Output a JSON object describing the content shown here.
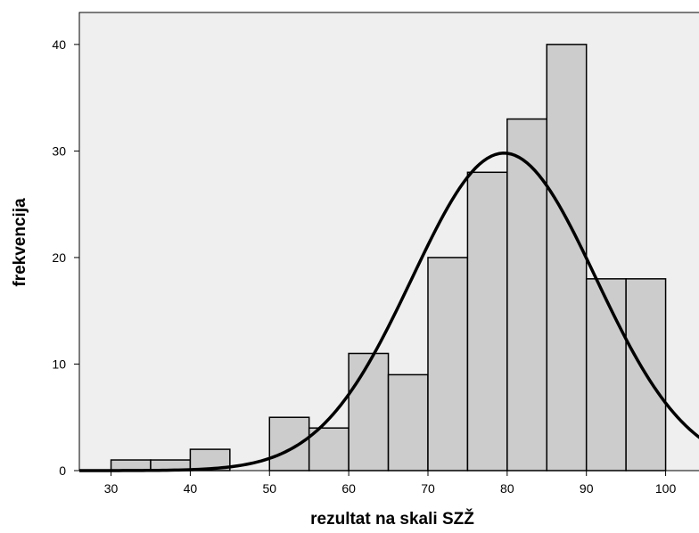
{
  "chart_data": {
    "type": "bar",
    "subtype": "histogram",
    "xlabel": "rezultat na skali SZŽ",
    "ylabel": "frekvencija",
    "xlim": [
      26,
      105
    ],
    "ylim": [
      0,
      43
    ],
    "x_ticks": [
      30,
      40,
      50,
      60,
      70,
      80,
      90,
      100
    ],
    "y_ticks": [
      0,
      10,
      20,
      30,
      40
    ],
    "bins": [
      {
        "start": 30,
        "end": 35,
        "value": 1
      },
      {
        "start": 35,
        "end": 40,
        "value": 1
      },
      {
        "start": 40,
        "end": 45,
        "value": 2
      },
      {
        "start": 50,
        "end": 55,
        "value": 5
      },
      {
        "start": 55,
        "end": 60,
        "value": 4
      },
      {
        "start": 60,
        "end": 65,
        "value": 11
      },
      {
        "start": 65,
        "end": 70,
        "value": 9
      },
      {
        "start": 70,
        "end": 75,
        "value": 20
      },
      {
        "start": 75,
        "end": 80,
        "value": 28
      },
      {
        "start": 80,
        "end": 85,
        "value": 33
      },
      {
        "start": 85,
        "end": 90,
        "value": 40
      },
      {
        "start": 90,
        "end": 95,
        "value": 18
      },
      {
        "start": 95,
        "end": 100,
        "value": 18
      }
    ],
    "normal_curve": {
      "mean": 79.6,
      "sd": 11.6,
      "peak": 29.8
    },
    "grid": false,
    "plot_background": "#efefef",
    "bar_color": "#cccccc"
  }
}
